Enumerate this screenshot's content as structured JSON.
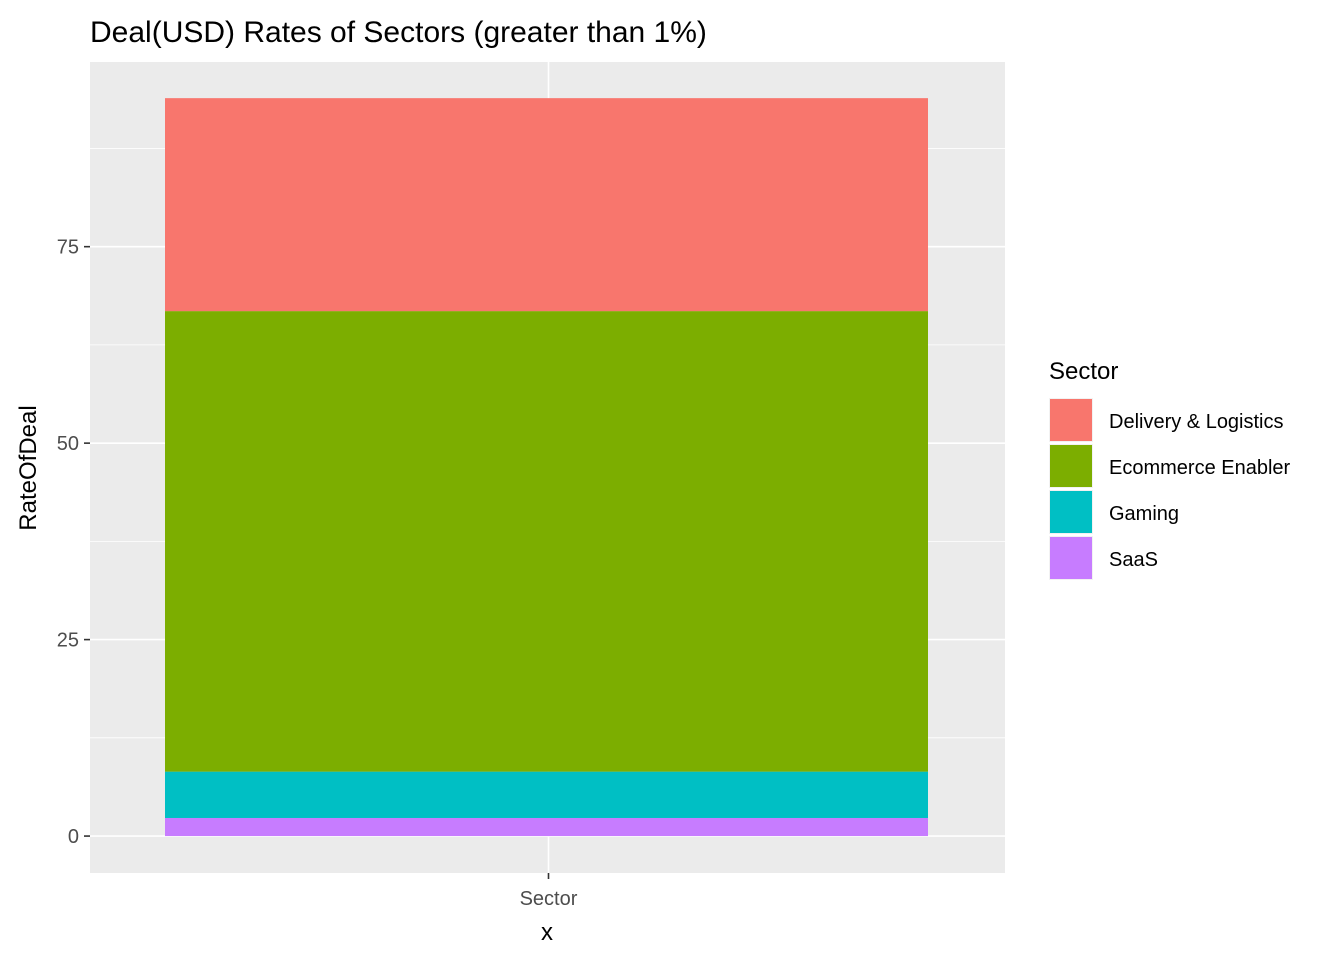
{
  "chart_data": {
    "type": "bar",
    "stacked": true,
    "title": "Deal(USD) Rates of Sectors (greater than 1%)",
    "xlabel": "x",
    "ylabel": "RateOfDeal",
    "categories": [
      "Sector"
    ],
    "y_ticks": [
      "0",
      "25",
      "50",
      "75"
    ],
    "ylim": [
      -4.7,
      98.5
    ],
    "grid": true,
    "legend": {
      "title": "Sector",
      "position": "right"
    },
    "series": [
      {
        "name": "Delivery & Logistics",
        "values": [
          27.1
        ],
        "color": "#F8766D"
      },
      {
        "name": "Ecommerce Enabler",
        "values": [
          58.6
        ],
        "color": "#7CAE00"
      },
      {
        "name": "Gaming",
        "values": [
          5.9
        ],
        "color": "#00BFC4"
      },
      {
        "name": "SaaS",
        "values": [
          2.3
        ],
        "color": "#C77CFF"
      }
    ],
    "stack_order_bottom_to_top": [
      "SaaS",
      "Gaming",
      "Ecommerce Enabler",
      "Delivery & Logistics"
    ],
    "panel_background": "#EBEBEB",
    "grid_color": "#FFFFFF"
  }
}
